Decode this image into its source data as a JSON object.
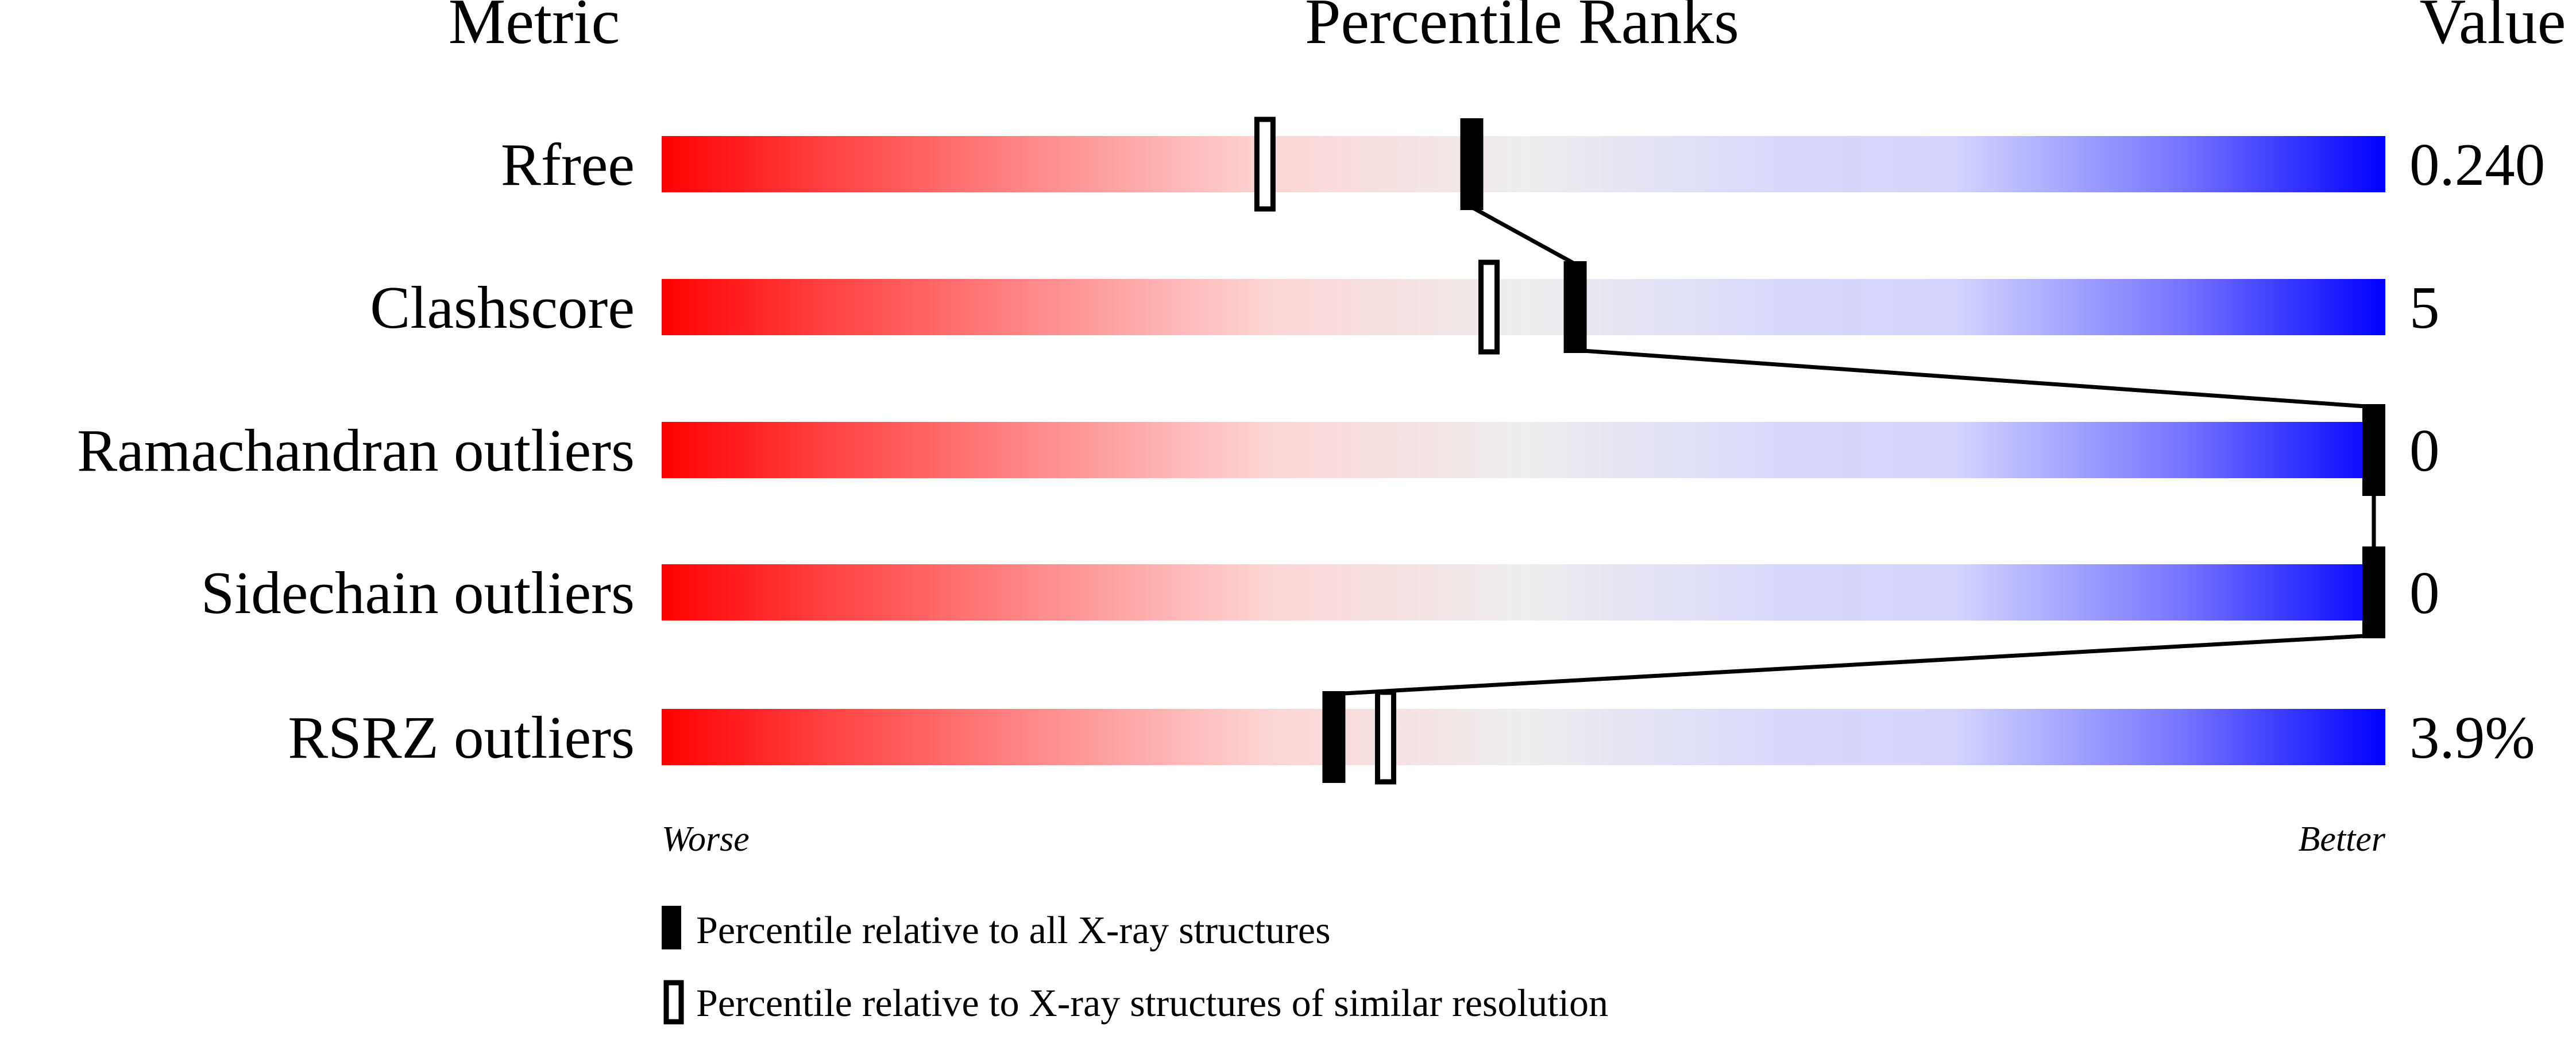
{
  "chart_data": {
    "type": "bar",
    "headers": {
      "metric": "Metric",
      "percentile": "Percentile Ranks",
      "value": "Value"
    },
    "xlim": [
      0,
      100
    ],
    "gradient_colors": [
      "#ff0000",
      "#eeeeee",
      "#0000ff"
    ],
    "axis_left_label": "Worse",
    "axis_right_label": "Better",
    "metrics": [
      {
        "name": "Rfree",
        "value": "0.240",
        "percentile_all": 47,
        "percentile_similar": 35
      },
      {
        "name": "Clashscore",
        "value": "5",
        "percentile_all": 53,
        "percentile_similar": 48
      },
      {
        "name": "Ramachandran outliers",
        "value": "0",
        "percentile_all": 100,
        "percentile_similar": 100
      },
      {
        "name": "Sidechain outliers",
        "value": "0",
        "percentile_all": 100,
        "percentile_similar": 100
      },
      {
        "name": "RSRZ outliers",
        "value": "3.9%",
        "percentile_all": 39,
        "percentile_similar": 42
      }
    ],
    "legend": [
      {
        "marker": "filled",
        "label": "Percentile relative to all X-ray structures"
      },
      {
        "marker": "open",
        "label": "Percentile relative to X-ray structures of similar resolution"
      }
    ]
  }
}
